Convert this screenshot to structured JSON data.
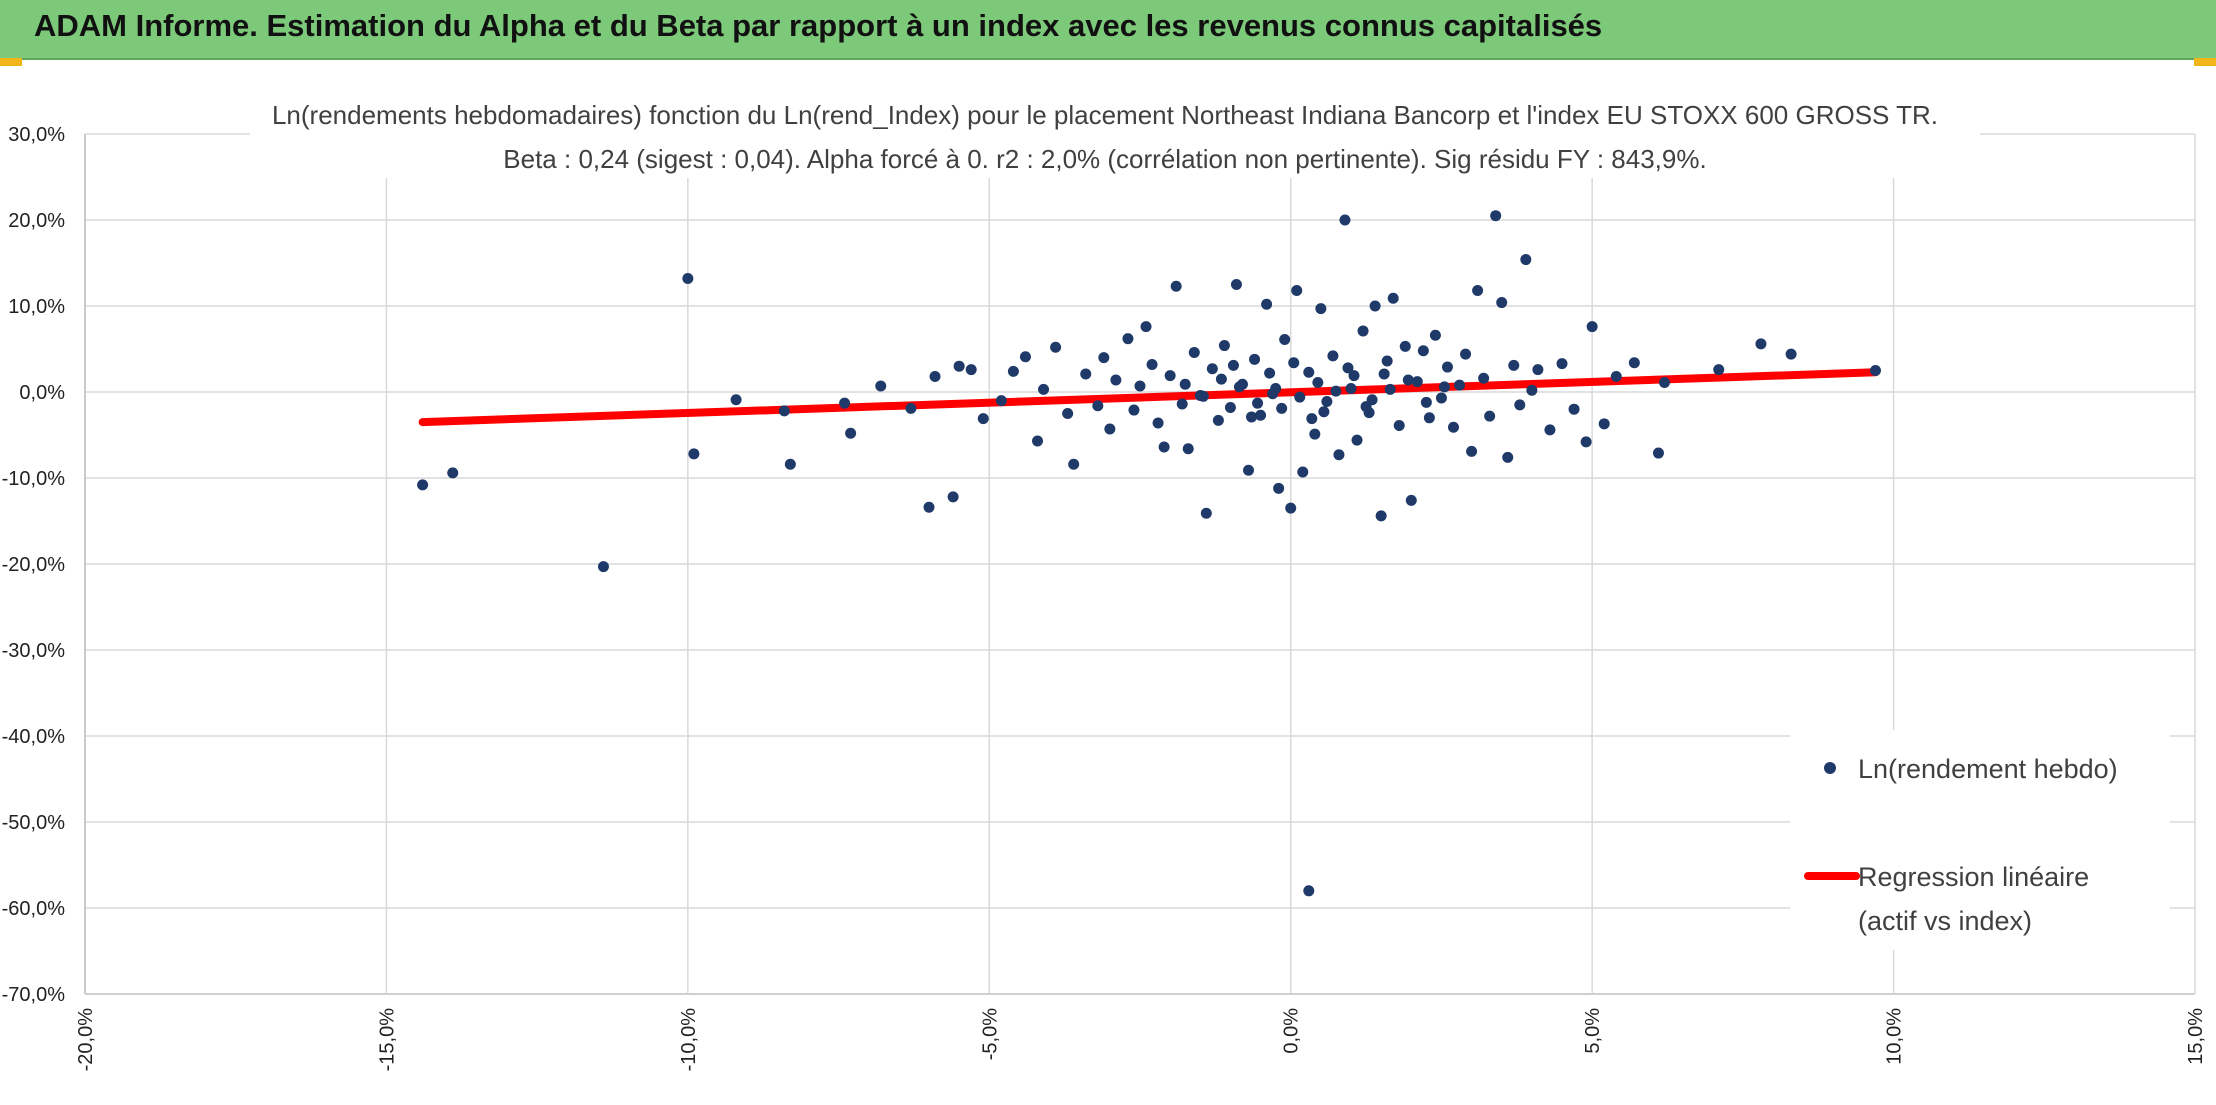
{
  "banner": {
    "title": "ADAM Informe. Estimation du Alpha et du Beta par rapport à un index avec les revenus connus capitalisés"
  },
  "colors": {
    "banner": "#7dc97a",
    "points": "#1f3a68",
    "regression": "#ff0000",
    "grid": "#d9d9d9"
  },
  "chart_data": {
    "type": "scatter",
    "title": "Ln(rendements hebdomadaires) fonction du Ln(rend_Index) pour le placement Northeast Indiana Bancorp et l'index EU STOXX 600 GROSS TR.",
    "subtitle": "Beta : 0,24 (sigest : 0,04). Alpha forcé à 0. r2 : 2,0% (corrélation non pertinente). Sig résidu FY : 843,9%.",
    "xlim": [
      -20,
      15
    ],
    "ylim": [
      -70,
      30
    ],
    "x_ticks": [
      -20,
      -15,
      -10,
      -5,
      0,
      5,
      10,
      15
    ],
    "y_ticks": [
      30,
      20,
      10,
      0,
      -10,
      -20,
      -30,
      -40,
      -50,
      -60,
      -70
    ],
    "x_tick_labels": [
      "-20,0%",
      "-15,0%",
      "-10,0%",
      "-5,0%",
      "0,0%",
      "5,0%",
      "10,0%",
      "15,0%"
    ],
    "y_tick_labels": [
      "30,0%",
      "20,0%",
      "10,0%",
      "0,0%",
      "-10,0%",
      "-20,0%",
      "-30,0%",
      "-40,0%",
      "-50,0%",
      "-60,0%",
      "-70,0%"
    ],
    "grid": true,
    "legend_position": "right",
    "series": [
      {
        "name": "Ln(rendement hebdo)",
        "kind": "points",
        "points": [
          [
            -14.4,
            -10.8
          ],
          [
            -13.9,
            -9.4
          ],
          [
            -11.4,
            -20.3
          ],
          [
            -10.0,
            13.2
          ],
          [
            -9.9,
            -7.2
          ],
          [
            -9.2,
            -0.9
          ],
          [
            -8.4,
            -2.2
          ],
          [
            -8.3,
            -8.4
          ],
          [
            -7.4,
            -1.3
          ],
          [
            -7.3,
            -4.8
          ],
          [
            -6.8,
            0.7
          ],
          [
            -6.3,
            -1.9
          ],
          [
            -6.0,
            -13.4
          ],
          [
            -5.9,
            1.8
          ],
          [
            -5.6,
            -12.2
          ],
          [
            -5.5,
            3.0
          ],
          [
            -5.3,
            2.6
          ],
          [
            -5.1,
            -3.1
          ],
          [
            -4.8,
            -1.0
          ],
          [
            -4.6,
            2.4
          ],
          [
            -4.4,
            4.1
          ],
          [
            -4.2,
            -5.7
          ],
          [
            -4.1,
            0.3
          ],
          [
            -3.9,
            5.2
          ],
          [
            -3.7,
            -2.5
          ],
          [
            -3.6,
            -8.4
          ],
          [
            -3.4,
            2.1
          ],
          [
            -3.2,
            -1.6
          ],
          [
            -3.1,
            4.0
          ],
          [
            -3.0,
            -4.3
          ],
          [
            -2.9,
            1.4
          ],
          [
            -2.7,
            6.2
          ],
          [
            -2.6,
            -2.1
          ],
          [
            -2.5,
            0.7
          ],
          [
            -2.4,
            7.6
          ],
          [
            -2.3,
            3.2
          ],
          [
            -2.2,
            -3.6
          ],
          [
            -2.1,
            -6.4
          ],
          [
            -2.0,
            1.9
          ],
          [
            -1.9,
            12.3
          ],
          [
            -1.8,
            -1.4
          ],
          [
            -1.7,
            -6.6
          ],
          [
            -1.6,
            4.6
          ],
          [
            -1.5,
            -0.4
          ],
          [
            -1.4,
            -14.1
          ],
          [
            -1.3,
            2.7
          ],
          [
            -1.2,
            -3.3
          ],
          [
            -1.1,
            5.4
          ],
          [
            -1.0,
            -1.8
          ],
          [
            -0.9,
            12.5
          ],
          [
            -0.8,
            0.9
          ],
          [
            -0.7,
            -9.1
          ],
          [
            -0.6,
            3.8
          ],
          [
            -0.5,
            -2.7
          ],
          [
            -0.4,
            10.2
          ],
          [
            -0.3,
            -0.2
          ],
          [
            -0.2,
            -11.2
          ],
          [
            -0.1,
            6.1
          ],
          [
            0.0,
            -13.5
          ],
          [
            0.1,
            11.8
          ],
          [
            0.2,
            -9.3
          ],
          [
            0.3,
            2.3
          ],
          [
            0.4,
            -4.9
          ],
          [
            0.5,
            9.7
          ],
          [
            0.6,
            -1.1
          ],
          [
            0.7,
            4.2
          ],
          [
            0.8,
            -7.3
          ],
          [
            0.9,
            20.0
          ],
          [
            1.0,
            0.4
          ],
          [
            1.1,
            -5.6
          ],
          [
            1.2,
            7.1
          ],
          [
            1.3,
            -2.4
          ],
          [
            1.4,
            10.0
          ],
          [
            1.5,
            -14.4
          ],
          [
            1.6,
            3.6
          ],
          [
            1.7,
            10.9
          ],
          [
            1.8,
            -3.9
          ],
          [
            1.9,
            5.3
          ],
          [
            2.0,
            -12.6
          ],
          [
            2.1,
            1.2
          ],
          [
            2.2,
            4.8
          ],
          [
            2.3,
            -3.0
          ],
          [
            2.4,
            6.6
          ],
          [
            2.5,
            -0.7
          ],
          [
            2.6,
            2.9
          ],
          [
            2.7,
            -4.1
          ],
          [
            2.8,
            0.8
          ],
          [
            2.9,
            4.4
          ],
          [
            3.0,
            -6.9
          ],
          [
            3.1,
            11.8
          ],
          [
            3.2,
            1.6
          ],
          [
            3.3,
            -2.8
          ],
          [
            3.4,
            20.5
          ],
          [
            3.5,
            10.4
          ],
          [
            3.6,
            -7.6
          ],
          [
            3.7,
            3.1
          ],
          [
            3.8,
            -1.5
          ],
          [
            3.9,
            15.4
          ],
          [
            4.0,
            0.2
          ],
          [
            4.1,
            2.6
          ],
          [
            4.3,
            -4.4
          ],
          [
            4.5,
            3.3
          ],
          [
            4.7,
            -2.0
          ],
          [
            4.9,
            -5.8
          ],
          [
            5.0,
            7.6
          ],
          [
            5.2,
            -3.7
          ],
          [
            5.4,
            1.8
          ],
          [
            5.7,
            3.4
          ],
          [
            6.1,
            -7.1
          ],
          [
            6.2,
            1.1
          ],
          [
            7.1,
            2.6
          ],
          [
            7.8,
            5.6
          ],
          [
            8.3,
            4.4
          ],
          [
            9.7,
            2.5
          ],
          [
            0.3,
            -58.0
          ],
          [
            -0.25,
            0.4
          ],
          [
            0.15,
            -0.6
          ],
          [
            0.45,
            1.1
          ],
          [
            -0.55,
            -1.3
          ],
          [
            0.75,
            0.1
          ],
          [
            1.05,
            1.9
          ],
          [
            -0.85,
            0.6
          ],
          [
            1.35,
            -0.9
          ],
          [
            -1.15,
            1.5
          ],
          [
            1.65,
            0.3
          ],
          [
            -1.45,
            -0.5
          ],
          [
            1.95,
            1.4
          ],
          [
            -0.35,
            2.2
          ],
          [
            0.55,
            -2.3
          ],
          [
            0.95,
            2.8
          ],
          [
            -0.65,
            -2.9
          ],
          [
            1.25,
            -1.7
          ],
          [
            -0.95,
            3.1
          ],
          [
            1.55,
            2.1
          ],
          [
            2.25,
            -1.2
          ],
          [
            -1.75,
            0.9
          ],
          [
            2.55,
            0.6
          ],
          [
            0.05,
            3.4
          ],
          [
            0.35,
            -3.1
          ],
          [
            -0.15,
            -1.9
          ]
        ]
      },
      {
        "name": "Regression linéaire (actif vs index)",
        "kind": "line",
        "points": [
          [
            -14.4,
            -3.5
          ],
          [
            9.7,
            2.3
          ]
        ]
      }
    ]
  },
  "legend": {
    "items": [
      {
        "label": "Ln(rendement hebdo)"
      },
      {
        "label": "Regression linéaire",
        "label_line2": "(actif vs index)"
      }
    ]
  }
}
